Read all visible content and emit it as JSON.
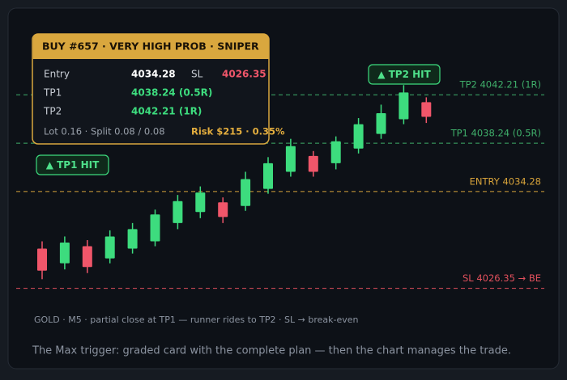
{
  "chart_data": {
    "type": "candlestick",
    "ylim": [
      4025,
      4046
    ],
    "up_color": "#3ddc7e",
    "down_color": "#f0566a",
    "open": [
      4029.6,
      4028.4,
      4029.8,
      4028.8,
      4029.6,
      4030.2,
      4031.7,
      4032.6,
      4033.4,
      4033.1,
      4034.5,
      4035.9,
      4037.2,
      4036.6,
      4037.8,
      4039.0,
      4040.2,
      4041.6
    ],
    "high": [
      4030.2,
      4030.6,
      4030.3,
      4031.1,
      4031.7,
      4032.8,
      4034.0,
      4034.7,
      4033.8,
      4035.9,
      4037.1,
      4038.6,
      4037.6,
      4038.8,
      4040.3,
      4041.4,
      4043.0,
      4042.0
    ],
    "low": [
      4027.1,
      4027.9,
      4027.6,
      4028.4,
      4029.2,
      4029.8,
      4031.2,
      4032.1,
      4031.7,
      4032.7,
      4034.1,
      4035.5,
      4035.5,
      4036.1,
      4037.4,
      4038.6,
      4039.8,
      4039.9
    ],
    "close": [
      4027.8,
      4030.1,
      4028.1,
      4030.6,
      4031.2,
      4032.4,
      4033.5,
      4034.2,
      4032.2,
      4035.3,
      4036.6,
      4038.0,
      4035.9,
      4038.4,
      4039.8,
      4040.7,
      4042.4,
      4040.4
    ],
    "levels": [
      {
        "label": "TP2 4042.21 (1R)",
        "value": 4042.21,
        "color": "#3fae6a"
      },
      {
        "label": "TP1 4038.24 (0.5R)",
        "value": 4038.24,
        "color": "#3fae6a"
      },
      {
        "label": "ENTRY 4034.28",
        "value": 4034.28,
        "color": "#d6a23a"
      },
      {
        "label": "SL 4026.35 → BE",
        "value": 4026.35,
        "color": "#e0505c"
      }
    ],
    "badges": [
      "▲ TP2 HIT",
      "▲ TP1 HIT"
    ],
    "footnote": "GOLD · M5 · partial close at TP1 — runner rides to TP2 · SL → break-even"
  },
  "card": {
    "title": "BUY #657 · VERY HIGH PROB · SNIPER",
    "rows": [
      [
        "Entry",
        "4034.28",
        "SL",
        "4026.35"
      ],
      [
        "TP1",
        "4038.24 (0.5R)"
      ],
      [
        "TP2",
        "4042.21 (1R)"
      ]
    ],
    "footer": [
      "Lot 0.16 · Split 0.08 / 0.08",
      "Risk $215 · 0.35%"
    ]
  },
  "caption": "The Max trigger: graded card with the complete plan — then the chart manages the trade."
}
